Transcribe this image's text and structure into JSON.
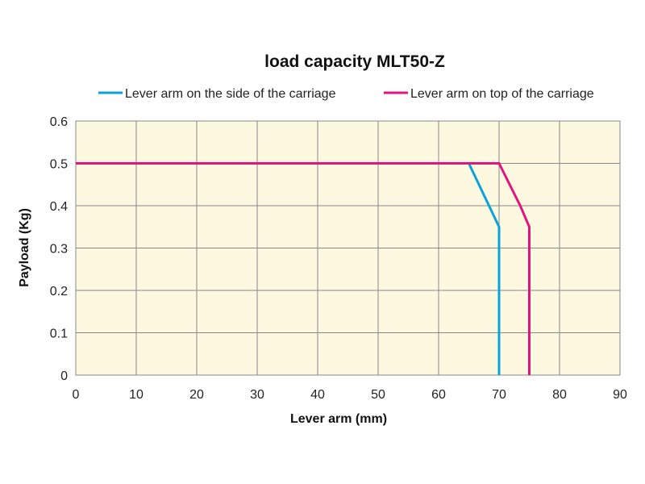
{
  "chart_data": {
    "type": "line",
    "title": "load capacity MLT50-Z",
    "xlabel": "Lever arm (mm)",
    "ylabel": "Payload (Kg)",
    "xlim": [
      0,
      90
    ],
    "ylim": [
      0,
      0.6
    ],
    "xticks": [
      "0",
      "10",
      "20",
      "30",
      "40",
      "50",
      "60",
      "70",
      "80",
      "90"
    ],
    "yticks": [
      "0",
      "0.1",
      "0.2",
      "0.3",
      "0.4",
      "0.5",
      "0.6"
    ],
    "grid": true,
    "legend_position": "top",
    "background": "#fdf8e0",
    "series": [
      {
        "name": "Lever arm on the side of the carriage",
        "color": "#0aa3d9",
        "points": [
          [
            0,
            0.5
          ],
          [
            65,
            0.5
          ],
          [
            70,
            0.35
          ],
          [
            70,
            0
          ]
        ]
      },
      {
        "name": "Lever arm on top of the carriage",
        "color": "#e2157e",
        "points": [
          [
            0,
            0.5
          ],
          [
            70,
            0.5
          ],
          [
            73.5,
            0.4
          ],
          [
            75,
            0.35
          ],
          [
            75,
            0
          ]
        ]
      }
    ]
  }
}
